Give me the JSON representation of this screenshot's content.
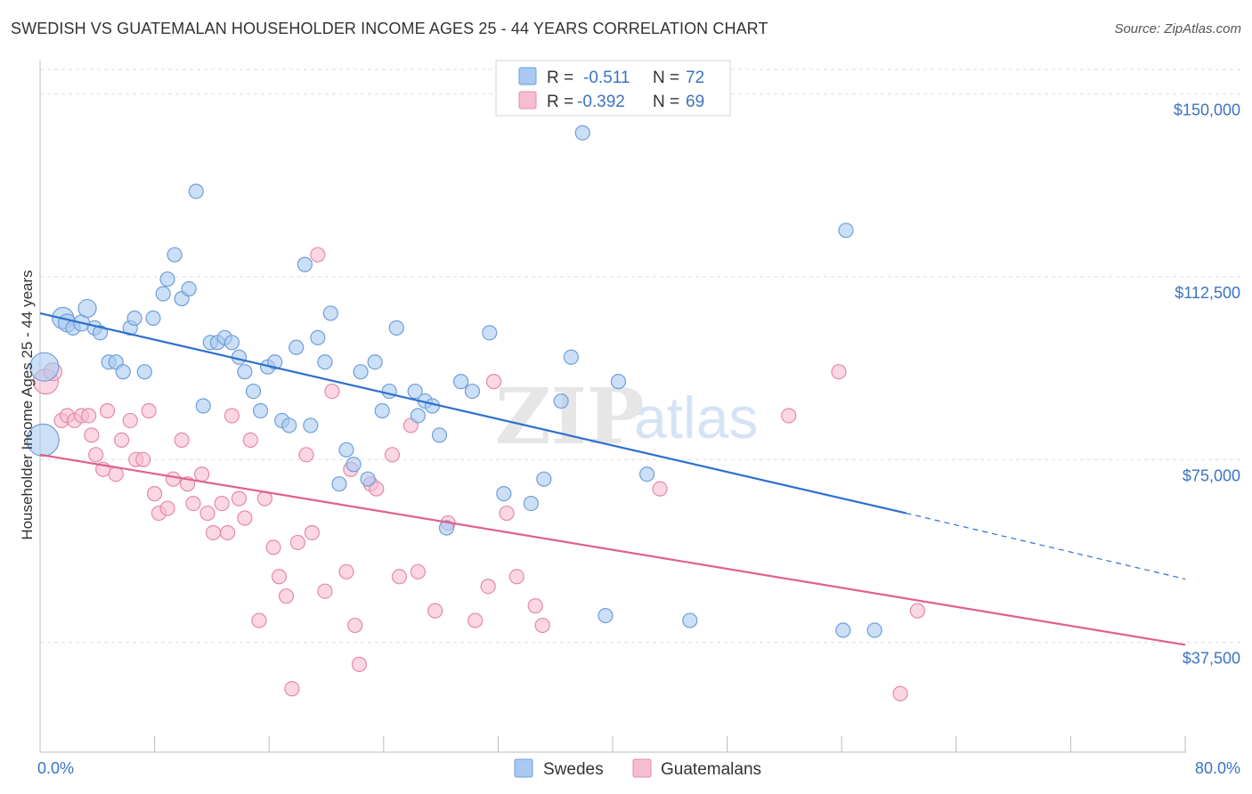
{
  "header": {
    "title": "SWEDISH VS GUATEMALAN HOUSEHOLDER INCOME AGES 25 - 44 YEARS CORRELATION CHART",
    "source": "Source: ZipAtlas.com"
  },
  "watermark": {
    "zip": "ZIP",
    "atlas": "atlas"
  },
  "colors": {
    "swedes_fill": "#a9c9f0",
    "swedes_stroke": "#6f9fd8",
    "swedes_line": "#2d6fcf",
    "guatemalans_fill": "#f6bdd0",
    "guatemalans_stroke": "#e48aaa",
    "guatemalans_line": "#e0608e",
    "grid": "#dddddd",
    "axis_label": "#3b73c4"
  },
  "legend_top": {
    "rows": [
      {
        "r_label": "R =",
        "r_value": "-0.511",
        "n_label": "N =",
        "n_value": "72",
        "series": "swedes"
      },
      {
        "r_label": "R =",
        "r_value": "-0.392",
        "n_label": "N =",
        "n_value": "69",
        "series": "guatemalans"
      }
    ]
  },
  "chart_data": {
    "type": "scatter",
    "title": "SWEDISH VS GUATEMALAN HOUSEHOLDER INCOME AGES 25 - 44 YEARS CORRELATION CHART",
    "xlabel": "",
    "ylabel": "Householder Income Ages 25 - 44 years",
    "xlim": [
      0,
      80
    ],
    "ylim": [
      15000,
      155000
    ],
    "x_tick_labels": [
      "0.0%",
      "80.0%"
    ],
    "y_ticks": [
      {
        "value": 37500,
        "label": "$37,500"
      },
      {
        "value": 75000,
        "label": "$75,000"
      },
      {
        "value": 112500,
        "label": "$112,500"
      },
      {
        "value": 150000,
        "label": "$150,000"
      }
    ],
    "grid": true,
    "legend_position": "top-center",
    "series": [
      {
        "name": "Swedes",
        "color": "#a9c9f0",
        "trend": {
          "x0": 0,
          "y0": 105000,
          "x1": 60.5,
          "y1": 64000,
          "dash_to_x": 80,
          "dash_to_y": 50500
        },
        "points": [
          [
            0.2,
            79000,
            18
          ],
          [
            0.3,
            94000,
            16
          ],
          [
            1.6,
            104000,
            12
          ],
          [
            1.9,
            103000,
            10
          ],
          [
            2.3,
            102000,
            8
          ],
          [
            2.9,
            103000,
            9
          ],
          [
            3.3,
            106000,
            10
          ],
          [
            3.8,
            102000,
            8
          ],
          [
            4.2,
            101000,
            8
          ],
          [
            4.8,
            95000,
            8
          ],
          [
            5.3,
            95000,
            8
          ],
          [
            5.8,
            93000,
            8
          ],
          [
            6.3,
            102000,
            8
          ],
          [
            6.6,
            104000,
            8
          ],
          [
            7.3,
            93000,
            8
          ],
          [
            7.9,
            104000,
            8
          ],
          [
            8.6,
            109000,
            8
          ],
          [
            8.9,
            112000,
            8
          ],
          [
            9.4,
            117000,
            8
          ],
          [
            9.9,
            108000,
            8
          ],
          [
            10.4,
            110000,
            8
          ],
          [
            10.9,
            130000,
            8
          ],
          [
            11.4,
            86000,
            8
          ],
          [
            11.9,
            99000,
            8
          ],
          [
            12.4,
            99000,
            8
          ],
          [
            12.9,
            100000,
            8
          ],
          [
            13.4,
            99000,
            8
          ],
          [
            13.9,
            96000,
            8
          ],
          [
            14.3,
            93000,
            8
          ],
          [
            14.9,
            89000,
            8
          ],
          [
            15.4,
            85000,
            8
          ],
          [
            15.9,
            94000,
            8
          ],
          [
            16.4,
            95000,
            8
          ],
          [
            16.9,
            83000,
            8
          ],
          [
            17.4,
            82000,
            8
          ],
          [
            17.9,
            98000,
            8
          ],
          [
            18.5,
            115000,
            8
          ],
          [
            18.9,
            82000,
            8
          ],
          [
            19.4,
            100000,
            8
          ],
          [
            19.9,
            95000,
            8
          ],
          [
            20.3,
            105000,
            8
          ],
          [
            20.9,
            70000,
            8
          ],
          [
            21.4,
            77000,
            8
          ],
          [
            21.9,
            74000,
            8
          ],
          [
            22.4,
            93000,
            8
          ],
          [
            22.9,
            71000,
            8
          ],
          [
            23.4,
            95000,
            8
          ],
          [
            23.9,
            85000,
            8
          ],
          [
            24.4,
            89000,
            8
          ],
          [
            24.9,
            102000,
            8
          ],
          [
            26.2,
            89000,
            8
          ],
          [
            26.4,
            84000,
            8
          ],
          [
            26.9,
            87000,
            8
          ],
          [
            27.4,
            86000,
            8
          ],
          [
            27.9,
            80000,
            8
          ],
          [
            28.4,
            61000,
            8
          ],
          [
            29.4,
            91000,
            8
          ],
          [
            30.2,
            89000,
            8
          ],
          [
            31.4,
            101000,
            8
          ],
          [
            32.4,
            68000,
            8
          ],
          [
            34.3,
            66000,
            8
          ],
          [
            35.2,
            71000,
            8
          ],
          [
            36.4,
            87000,
            8
          ],
          [
            37.1,
            96000,
            8
          ],
          [
            37.9,
            142000,
            8
          ],
          [
            39.5,
            43000,
            8
          ],
          [
            40.4,
            91000,
            8
          ],
          [
            42.4,
            72000,
            8
          ],
          [
            45.4,
            42000,
            8
          ],
          [
            56.3,
            122000,
            8
          ],
          [
            56.1,
            40000,
            8
          ],
          [
            58.3,
            40000,
            8
          ]
        ]
      },
      {
        "name": "Guatemalans",
        "color": "#f6bdd0",
        "trend": {
          "x0": 0,
          "y0": 76000,
          "x1": 80,
          "y1": 37000
        },
        "points": [
          [
            0.4,
            91000,
            14
          ],
          [
            0.9,
            93000,
            10
          ],
          [
            1.5,
            83000,
            8
          ],
          [
            1.9,
            84000,
            8
          ],
          [
            2.4,
            83000,
            8
          ],
          [
            2.9,
            84000,
            8
          ],
          [
            3.4,
            84000,
            8
          ],
          [
            3.6,
            80000,
            8
          ],
          [
            3.9,
            76000,
            8
          ],
          [
            4.4,
            73000,
            8
          ],
          [
            4.7,
            85000,
            8
          ],
          [
            5.3,
            72000,
            8
          ],
          [
            5.7,
            79000,
            8
          ],
          [
            6.3,
            83000,
            8
          ],
          [
            6.7,
            75000,
            8
          ],
          [
            7.2,
            75000,
            8
          ],
          [
            7.6,
            85000,
            8
          ],
          [
            8.0,
            68000,
            8
          ],
          [
            8.3,
            64000,
            8
          ],
          [
            8.9,
            65000,
            8
          ],
          [
            9.3,
            71000,
            8
          ],
          [
            9.9,
            79000,
            8
          ],
          [
            10.3,
            70000,
            8
          ],
          [
            10.7,
            66000,
            8
          ],
          [
            11.3,
            72000,
            8
          ],
          [
            11.7,
            64000,
            8
          ],
          [
            12.1,
            60000,
            8
          ],
          [
            12.7,
            66000,
            8
          ],
          [
            13.1,
            60000,
            8
          ],
          [
            13.4,
            84000,
            8
          ],
          [
            13.9,
            67000,
            8
          ],
          [
            14.3,
            63000,
            8
          ],
          [
            14.7,
            79000,
            8
          ],
          [
            15.3,
            42000,
            8
          ],
          [
            15.7,
            67000,
            8
          ],
          [
            16.3,
            57000,
            8
          ],
          [
            16.7,
            51000,
            8
          ],
          [
            17.2,
            47000,
            8
          ],
          [
            17.6,
            28000,
            8
          ],
          [
            18.0,
            58000,
            8
          ],
          [
            18.6,
            76000,
            8
          ],
          [
            19.0,
            60000,
            8
          ],
          [
            19.4,
            117000,
            8
          ],
          [
            19.9,
            48000,
            8
          ],
          [
            20.4,
            89000,
            8
          ],
          [
            21.4,
            52000,
            8
          ],
          [
            21.7,
            73000,
            8
          ],
          [
            22.0,
            41000,
            8
          ],
          [
            22.3,
            33000,
            8
          ],
          [
            23.1,
            70000,
            8
          ],
          [
            23.5,
            69000,
            8
          ],
          [
            24.6,
            76000,
            8
          ],
          [
            25.1,
            51000,
            8
          ],
          [
            25.9,
            82000,
            8
          ],
          [
            26.4,
            52000,
            8
          ],
          [
            27.6,
            44000,
            8
          ],
          [
            28.5,
            62000,
            8
          ],
          [
            30.4,
            42000,
            8
          ],
          [
            31.3,
            49000,
            8
          ],
          [
            31.7,
            91000,
            8
          ],
          [
            32.6,
            64000,
            8
          ],
          [
            33.3,
            51000,
            8
          ],
          [
            34.6,
            45000,
            8
          ],
          [
            35.1,
            41000,
            8
          ],
          [
            43.3,
            69000,
            8
          ],
          [
            52.3,
            84000,
            8
          ],
          [
            55.8,
            93000,
            8
          ],
          [
            60.1,
            27000,
            8
          ],
          [
            61.3,
            44000,
            8
          ]
        ]
      }
    ]
  },
  "bottom_legend": {
    "items": [
      {
        "label": "Swedes"
      },
      {
        "label": "Guatemalans"
      }
    ]
  }
}
